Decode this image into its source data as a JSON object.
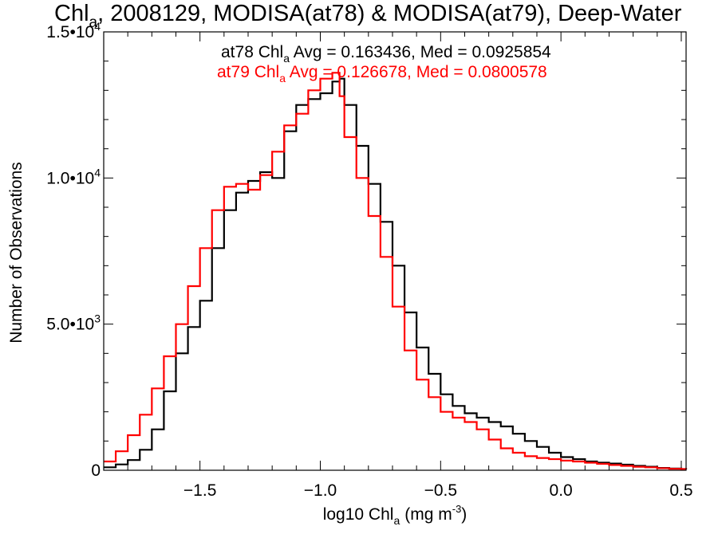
{
  "chart_data": {
    "type": "line",
    "title": "Chl",
    "title_sub": "a",
    "title_rest": ", 2008129, MODISA(at78) & MODISA(at79), Deep-Water",
    "xlabel": "log10 Chl",
    "xlabel_sub": "a",
    "xlabel_units": "(mg m",
    "xlabel_units_sup": "-3",
    "xlabel_units_end": ")",
    "ylabel": "Number of Observations",
    "xlim": [
      -1.9,
      0.52
    ],
    "ylim": [
      0,
      15000
    ],
    "x_ticks": [
      -1.5,
      -1.0,
      -0.5,
      0.0,
      0.5
    ],
    "x_tick_labels": [
      "-1.5",
      "-1.0",
      "-0.5",
      "0.0",
      "0.5"
    ],
    "y_ticks": [
      0,
      5000,
      10000,
      15000
    ],
    "y_tick_labels": [
      {
        "base": "0",
        "exp": ""
      },
      {
        "base": "5.0•10",
        "exp": "3"
      },
      {
        "base": "1.0•10",
        "exp": "4"
      },
      {
        "base": "1.5•10",
        "exp": "4"
      }
    ],
    "grid": false,
    "annotations": [
      {
        "pre": "at78 Chl",
        "sub": "a",
        "post": " Avg = 0.163436, Med = 0.0925854",
        "color": "#000000"
      },
      {
        "pre": "at79 Chl",
        "sub": "a",
        "post": " Avg = 0.126678, Med = 0.0800578",
        "color": "#ff0000"
      }
    ],
    "series": [
      {
        "color": "#000000",
        "x": [
          -1.9,
          -1.85,
          -1.8,
          -1.75,
          -1.7,
          -1.65,
          -1.6,
          -1.55,
          -1.5,
          -1.45,
          -1.4,
          -1.35,
          -1.3,
          -1.25,
          -1.2,
          -1.15,
          -1.1,
          -1.05,
          -1.0,
          -0.95,
          -0.92,
          -0.9,
          -0.85,
          -0.8,
          -0.75,
          -0.7,
          -0.65,
          -0.6,
          -0.55,
          -0.5,
          -0.45,
          -0.4,
          -0.35,
          -0.3,
          -0.25,
          -0.2,
          -0.15,
          -0.1,
          -0.05,
          0.0,
          0.05,
          0.1,
          0.15,
          0.2,
          0.25,
          0.3,
          0.35,
          0.4,
          0.45,
          0.5,
          0.52
        ],
        "y": [
          100,
          200,
          350,
          700,
          1400,
          2700,
          4000,
          4900,
          5800,
          7600,
          8900,
          9500,
          9900,
          10200,
          10000,
          11600,
          12500,
          12700,
          12900,
          13300,
          13400,
          12500,
          11100,
          9800,
          8500,
          7000,
          5400,
          4200,
          3300,
          2600,
          2200,
          1950,
          1800,
          1650,
          1500,
          1250,
          1000,
          800,
          600,
          450,
          380,
          300,
          260,
          230,
          190,
          150,
          120,
          80,
          60,
          40,
          30
        ]
      },
      {
        "color": "#ff0000",
        "x": [
          -1.9,
          -1.85,
          -1.8,
          -1.75,
          -1.7,
          -1.65,
          -1.6,
          -1.55,
          -1.5,
          -1.45,
          -1.4,
          -1.35,
          -1.3,
          -1.25,
          -1.2,
          -1.15,
          -1.1,
          -1.05,
          -1.0,
          -0.95,
          -0.92,
          -0.9,
          -0.85,
          -0.8,
          -0.75,
          -0.7,
          -0.65,
          -0.6,
          -0.55,
          -0.5,
          -0.45,
          -0.4,
          -0.35,
          -0.3,
          -0.25,
          -0.2,
          -0.15,
          -0.1,
          -0.05,
          0.0,
          0.05,
          0.1,
          0.15,
          0.2,
          0.25,
          0.3,
          0.35,
          0.4,
          0.45,
          0.5,
          0.52
        ],
        "y": [
          300,
          650,
          1200,
          1900,
          2800,
          3900,
          5000,
          6300,
          7600,
          8900,
          9700,
          9800,
          9600,
          10100,
          10900,
          11800,
          12200,
          13000,
          13400,
          13600,
          12800,
          11400,
          10000,
          8700,
          7300,
          5600,
          4100,
          3100,
          2500,
          2000,
          1800,
          1650,
          1400,
          1050,
          750,
          600,
          480,
          420,
          380,
          330,
          300,
          260,
          220,
          180,
          150,
          120,
          100,
          70,
          50,
          40,
          30
        ]
      }
    ]
  }
}
